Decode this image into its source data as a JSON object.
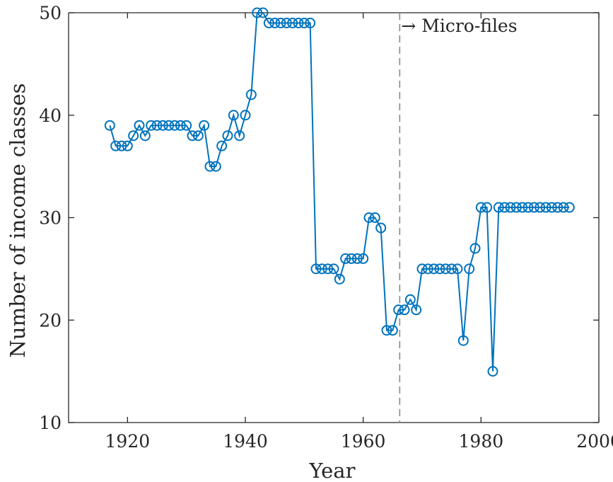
{
  "chart_data": {
    "type": "line",
    "title": "",
    "xlabel": "Year",
    "ylabel": "Number of income classes",
    "xlim": [
      1910,
      2000
    ],
    "ylim": [
      10,
      50
    ],
    "xticks": [
      1920,
      1940,
      1960,
      1980,
      2000
    ],
    "yticks": [
      10,
      20,
      30,
      40,
      50
    ],
    "xtick_labels": [
      "1920",
      "1940",
      "1960",
      "1980",
      "2000"
    ],
    "ytick_labels": [
      "10",
      "20",
      "30",
      "40",
      "50"
    ],
    "grid": false,
    "series_color": "#0072BD",
    "marker": "circle",
    "series": [
      {
        "x": [
          1917,
          1918,
          1919,
          1920,
          1921,
          1922,
          1923,
          1924,
          1925,
          1926,
          1927,
          1928,
          1929,
          1930,
          1931,
          1932,
          1933,
          1934,
          1935,
          1936,
          1937,
          1938,
          1939,
          1940,
          1941,
          1942,
          1943,
          1944,
          1945,
          1946,
          1947,
          1948,
          1949,
          1950,
          1951,
          1952,
          1953,
          1954,
          1955,
          1956,
          1957,
          1958,
          1959,
          1960,
          1961,
          1962,
          1963,
          1964,
          1965,
          1966,
          1967,
          1968,
          1969,
          1970,
          1971,
          1972,
          1973,
          1974,
          1975,
          1976,
          1977,
          1978,
          1979,
          1980,
          1981,
          1982,
          1983,
          1984,
          1985,
          1986,
          1987,
          1988,
          1989,
          1990,
          1991,
          1992,
          1993,
          1994,
          1995
        ],
        "values": [
          39,
          37,
          37,
          37,
          38,
          39,
          38,
          39,
          39,
          39,
          39,
          39,
          39,
          39,
          38,
          38,
          39,
          35,
          35,
          37,
          38,
          40,
          38,
          40,
          42,
          50,
          50,
          49,
          49,
          49,
          49,
          49,
          49,
          49,
          49,
          25,
          25,
          25,
          25,
          24,
          26,
          26,
          26,
          26,
          30,
          30,
          29,
          19,
          19,
          21,
          21,
          22,
          21,
          25,
          25,
          25,
          25,
          25,
          25,
          25,
          18,
          25,
          27,
          31,
          31,
          15,
          31,
          31,
          31,
          31,
          31,
          31,
          31,
          31,
          31,
          31,
          31,
          31,
          31
        ]
      }
    ],
    "annotations": [
      {
        "text": "→ Micro-files",
        "x": 1966.2,
        "type": "vertical-dashed-line"
      }
    ]
  }
}
